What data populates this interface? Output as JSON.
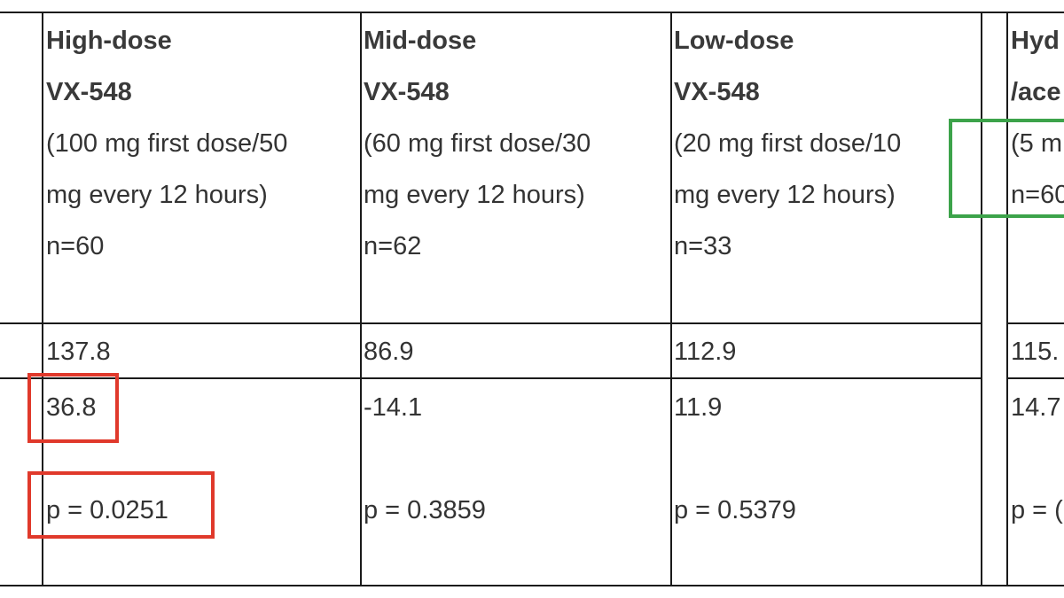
{
  "table": {
    "columns": [
      {
        "title": "High-dose",
        "drug": "VX-548",
        "dose_line1": "(100 mg first dose/50",
        "dose_line2": "mg every 12 hours)",
        "n": "n=60",
        "value1": "137.8",
        "value2": "36.8",
        "p_value": "p = 0.0251"
      },
      {
        "title": "Mid-dose",
        "drug": "VX-548",
        "dose_line1": "(60 mg first dose/30",
        "dose_line2": "mg every 12 hours)",
        "n": "n=62",
        "value1": "86.9",
        "value2": "-14.1",
        "p_value": "p = 0.3859"
      },
      {
        "title": "Low-dose",
        "drug": "VX-548",
        "dose_line1": "(20 mg first dose/10",
        "dose_line2": "mg every 12 hours)",
        "n": "n=33",
        "value1": "112.9",
        "value2": "11.9",
        "p_value": "p = 0.5379"
      },
      {
        "title": "Hyd",
        "drug": "/ace",
        "dose_line1": "(5 m",
        "dose_line2": "n=60",
        "n": "",
        "value1": "115.",
        "value2": "14.7",
        "p_value": "p = ("
      }
    ]
  },
  "annotation_colors": {
    "red": "#e0392b",
    "green": "#3ca34a"
  }
}
